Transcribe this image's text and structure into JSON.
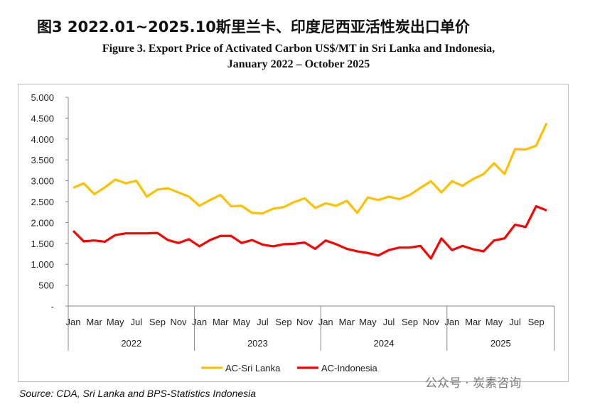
{
  "title_cn": "图3 2022.01~2025.10斯里兰卡、印度尼西亚活性炭出口单价",
  "title_en_1": "Figure 3. Export Price of Activated Carbon US$/MT in Sri Lanka and Indonesia,",
  "title_en_2": "January 2022 – October 2025",
  "source": "Source: CDA, Sri Lanka and BPS-Statistics Indonesia",
  "watermark": "公众号 · 炭素咨询",
  "chart_data": {
    "type": "line",
    "ylim": [
      0,
      5000
    ],
    "yticks": [
      0,
      500,
      1000,
      1500,
      2000,
      2500,
      3000,
      3500,
      4000,
      4500,
      5000
    ],
    "ytick_labels": [
      "-",
      "500",
      "1.000",
      "1.500",
      "2.000",
      "2.500",
      "3.000",
      "3.500",
      "4.000",
      "4.500",
      "5.000"
    ],
    "month_labels": [
      "Jan",
      "Mar",
      "May",
      "Jul",
      "Sep",
      "Nov"
    ],
    "years": [
      "2022",
      "2023",
      "2024",
      "2025"
    ],
    "months_per_year": [
      12,
      12,
      12,
      10
    ],
    "series": [
      {
        "name": "AC-Sri Lanka",
        "color": "#FFC000",
        "values": [
          2830,
          2940,
          2680,
          2840,
          3030,
          2940,
          3000,
          2620,
          2790,
          2820,
          2720,
          2620,
          2400,
          2540,
          2660,
          2390,
          2400,
          2230,
          2220,
          2330,
          2370,
          2490,
          2580,
          2350,
          2460,
          2400,
          2520,
          2230,
          2600,
          2540,
          2620,
          2560,
          2660,
          2830,
          2990,
          2720,
          2990,
          2880,
          3040,
          3160,
          3420,
          3160,
          3760,
          3750,
          3840,
          4380
        ]
      },
      {
        "name": "AC-Indonesia",
        "color": "#FF0000",
        "values": [
          1800,
          1550,
          1570,
          1540,
          1700,
          1740,
          1740,
          1740,
          1750,
          1580,
          1510,
          1600,
          1430,
          1580,
          1680,
          1680,
          1510,
          1580,
          1470,
          1430,
          1480,
          1490,
          1520,
          1370,
          1570,
          1480,
          1370,
          1310,
          1270,
          1210,
          1340,
          1400,
          1400,
          1440,
          1140,
          1620,
          1340,
          1440,
          1360,
          1310,
          1570,
          1620,
          1950,
          1890,
          2390,
          2290
        ]
      }
    ]
  }
}
